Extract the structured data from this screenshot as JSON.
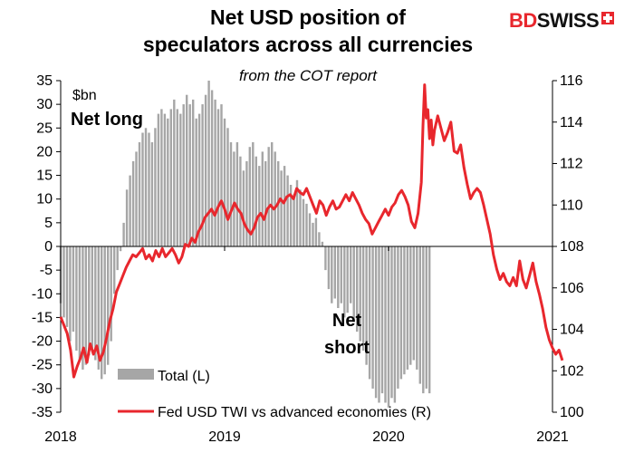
{
  "header": {
    "title_line1": "Net USD position of",
    "title_line2": "speculators across all currencies",
    "subtitle": "from the COT report"
  },
  "logo": {
    "part1": "BD",
    "part2": "SWISS"
  },
  "colors": {
    "bars": "#a6a6a6",
    "line": "#e8272d",
    "axis": "#000000"
  },
  "chart_data": {
    "type": "bar+line",
    "unit_label": "$bn",
    "x_ticks": [
      "2018",
      "2019",
      "2020",
      "2021"
    ],
    "y_left": {
      "range": [
        -35,
        35
      ],
      "ticks": [
        -35,
        -30,
        -25,
        -20,
        -15,
        -10,
        -5,
        0,
        5,
        10,
        15,
        20,
        25,
        30,
        35
      ]
    },
    "y_right": {
      "range": [
        100,
        116
      ],
      "ticks": [
        100,
        102,
        104,
        106,
        108,
        110,
        112,
        114,
        116
      ]
    },
    "annotations": {
      "net_long": "Net long",
      "net_short_1": "Net",
      "net_short_2": "short"
    },
    "legend": {
      "bars": "Total (L)",
      "line": "Fed USD TWI vs advanced economies (R)"
    },
    "series": [
      {
        "name": "Total (L)",
        "kind": "bar",
        "axis": "left",
        "start": 2018.0,
        "step": 0.01923,
        "values": [
          -12,
          -15,
          -17,
          -20,
          -18,
          -22,
          -24,
          -26,
          -25,
          -23,
          -22,
          -24,
          -26,
          -28,
          -27,
          -25,
          -20,
          -10,
          -5,
          -1,
          5,
          12,
          15,
          18,
          20,
          22,
          24,
          25,
          24,
          22,
          25,
          28,
          29,
          28,
          27,
          29,
          31,
          29,
          28,
          30,
          32,
          30,
          31,
          27,
          28,
          30,
          32,
          35,
          33,
          31,
          29,
          30,
          27,
          25,
          22,
          20,
          22,
          19,
          16,
          18,
          21,
          22,
          19,
          17,
          20,
          18,
          21,
          22,
          20,
          18,
          16,
          17,
          15,
          13,
          11,
          14,
          12,
          10,
          9,
          7,
          5,
          6,
          3,
          1,
          -5,
          -9,
          -12,
          -11,
          -13,
          -12,
          -15,
          -14,
          -12,
          -16,
          -18,
          -20,
          -22,
          -25,
          -28,
          -30,
          -32,
          -33,
          -31,
          -33,
          -34,
          -32,
          -33,
          -30,
          -28,
          -27,
          -26,
          -25,
          -24,
          -26,
          -29,
          -31,
          -30,
          -31
        ]
      },
      {
        "name": "Fed USD TWI vs advanced economies (R)",
        "kind": "line",
        "axis": "right",
        "points": [
          [
            2018.0,
            104.6
          ],
          [
            2018.02,
            104.2
          ],
          [
            2018.04,
            103.8
          ],
          [
            2018.06,
            103.0
          ],
          [
            2018.08,
            101.7
          ],
          [
            2018.1,
            102.2
          ],
          [
            2018.12,
            102.6
          ],
          [
            2018.14,
            103.1
          ],
          [
            2018.16,
            102.4
          ],
          [
            2018.18,
            103.3
          ],
          [
            2018.2,
            102.8
          ],
          [
            2018.22,
            103.2
          ],
          [
            2018.24,
            102.5
          ],
          [
            2018.26,
            102.9
          ],
          [
            2018.28,
            103.6
          ],
          [
            2018.3,
            104.4
          ],
          [
            2018.32,
            105.0
          ],
          [
            2018.34,
            105.8
          ],
          [
            2018.36,
            106.2
          ],
          [
            2018.38,
            106.6
          ],
          [
            2018.4,
            107.0
          ],
          [
            2018.42,
            107.3
          ],
          [
            2018.44,
            107.6
          ],
          [
            2018.46,
            107.5
          ],
          [
            2018.48,
            107.7
          ],
          [
            2018.5,
            107.9
          ],
          [
            2018.52,
            107.4
          ],
          [
            2018.54,
            107.6
          ],
          [
            2018.56,
            107.3
          ],
          [
            2018.58,
            107.8
          ],
          [
            2018.6,
            107.5
          ],
          [
            2018.62,
            107.9
          ],
          [
            2018.64,
            107.5
          ],
          [
            2018.66,
            107.7
          ],
          [
            2018.68,
            107.9
          ],
          [
            2018.7,
            107.6
          ],
          [
            2018.72,
            107.2
          ],
          [
            2018.74,
            107.5
          ],
          [
            2018.76,
            108.1
          ],
          [
            2018.78,
            108.0
          ],
          [
            2018.8,
            108.4
          ],
          [
            2018.82,
            108.2
          ],
          [
            2018.84,
            108.7
          ],
          [
            2018.86,
            109.0
          ],
          [
            2018.88,
            109.4
          ],
          [
            2018.9,
            109.6
          ],
          [
            2018.92,
            109.8
          ],
          [
            2018.94,
            109.5
          ],
          [
            2018.96,
            109.9
          ],
          [
            2018.98,
            110.2
          ],
          [
            2019.0,
            109.8
          ],
          [
            2019.02,
            109.3
          ],
          [
            2019.04,
            109.7
          ],
          [
            2019.06,
            110.1
          ],
          [
            2019.08,
            109.8
          ],
          [
            2019.1,
            109.6
          ],
          [
            2019.12,
            109.1
          ],
          [
            2019.14,
            108.8
          ],
          [
            2019.16,
            108.6
          ],
          [
            2019.18,
            108.9
          ],
          [
            2019.2,
            109.4
          ],
          [
            2019.22,
            109.6
          ],
          [
            2019.24,
            109.3
          ],
          [
            2019.26,
            109.8
          ],
          [
            2019.28,
            110.0
          ],
          [
            2019.3,
            109.8
          ],
          [
            2019.32,
            110.0
          ],
          [
            2019.34,
            110.3
          ],
          [
            2019.36,
            110.1
          ],
          [
            2019.38,
            110.4
          ],
          [
            2019.4,
            110.5
          ],
          [
            2019.42,
            110.3
          ],
          [
            2019.44,
            110.8
          ],
          [
            2019.46,
            110.6
          ],
          [
            2019.48,
            110.5
          ],
          [
            2019.5,
            110.8
          ],
          [
            2019.52,
            110.4
          ],
          [
            2019.54,
            110.0
          ],
          [
            2019.56,
            109.6
          ],
          [
            2019.58,
            110.2
          ],
          [
            2019.6,
            110.0
          ],
          [
            2019.62,
            109.5
          ],
          [
            2019.64,
            109.9
          ],
          [
            2019.66,
            110.2
          ],
          [
            2019.68,
            109.8
          ],
          [
            2019.7,
            109.9
          ],
          [
            2019.72,
            110.2
          ],
          [
            2019.74,
            110.5
          ],
          [
            2019.76,
            110.2
          ],
          [
            2019.78,
            110.6
          ],
          [
            2019.8,
            110.3
          ],
          [
            2019.82,
            110.0
          ],
          [
            2019.84,
            109.6
          ],
          [
            2019.86,
            109.3
          ],
          [
            2019.88,
            109.1
          ],
          [
            2019.9,
            108.6
          ],
          [
            2019.92,
            108.9
          ],
          [
            2019.94,
            109.2
          ],
          [
            2019.96,
            109.5
          ],
          [
            2019.98,
            109.8
          ],
          [
            2020.0,
            109.5
          ],
          [
            2020.02,
            109.9
          ],
          [
            2020.04,
            110.1
          ],
          [
            2020.06,
            110.5
          ],
          [
            2020.08,
            110.7
          ],
          [
            2020.1,
            110.4
          ],
          [
            2020.12,
            110.0
          ],
          [
            2020.14,
            109.2
          ],
          [
            2020.16,
            108.9
          ],
          [
            2020.18,
            109.6
          ],
          [
            2020.2,
            111.1
          ],
          [
            2020.21,
            113.8
          ],
          [
            2020.22,
            115.8
          ],
          [
            2020.23,
            114.2
          ],
          [
            2020.24,
            114.6
          ],
          [
            2020.25,
            113.2
          ],
          [
            2020.26,
            114.1
          ],
          [
            2020.27,
            112.9
          ],
          [
            2020.28,
            113.6
          ],
          [
            2020.3,
            114.3
          ],
          [
            2020.32,
            113.7
          ],
          [
            2020.34,
            113.1
          ],
          [
            2020.36,
            113.5
          ],
          [
            2020.38,
            114.0
          ],
          [
            2020.4,
            112.6
          ],
          [
            2020.42,
            112.5
          ],
          [
            2020.44,
            112.9
          ],
          [
            2020.46,
            111.8
          ],
          [
            2020.48,
            111.0
          ],
          [
            2020.5,
            110.3
          ],
          [
            2020.52,
            110.6
          ],
          [
            2020.54,
            110.8
          ],
          [
            2020.56,
            110.6
          ],
          [
            2020.58,
            110.0
          ],
          [
            2020.6,
            109.3
          ],
          [
            2020.62,
            108.6
          ],
          [
            2020.64,
            107.6
          ],
          [
            2020.66,
            106.9
          ],
          [
            2020.68,
            106.4
          ],
          [
            2020.7,
            106.7
          ],
          [
            2020.72,
            106.3
          ],
          [
            2020.74,
            106.1
          ],
          [
            2020.76,
            106.5
          ],
          [
            2020.78,
            106.1
          ],
          [
            2020.8,
            107.3
          ],
          [
            2020.82,
            106.4
          ],
          [
            2020.84,
            106.0
          ],
          [
            2020.86,
            106.6
          ],
          [
            2020.88,
            107.2
          ],
          [
            2020.9,
            106.3
          ],
          [
            2020.92,
            105.7
          ],
          [
            2020.94,
            105.0
          ],
          [
            2020.96,
            104.1
          ],
          [
            2020.98,
            103.5
          ],
          [
            2021.0,
            103.1
          ],
          [
            2021.02,
            102.8
          ],
          [
            2021.04,
            103.0
          ],
          [
            2021.06,
            102.5
          ]
        ]
      }
    ]
  }
}
